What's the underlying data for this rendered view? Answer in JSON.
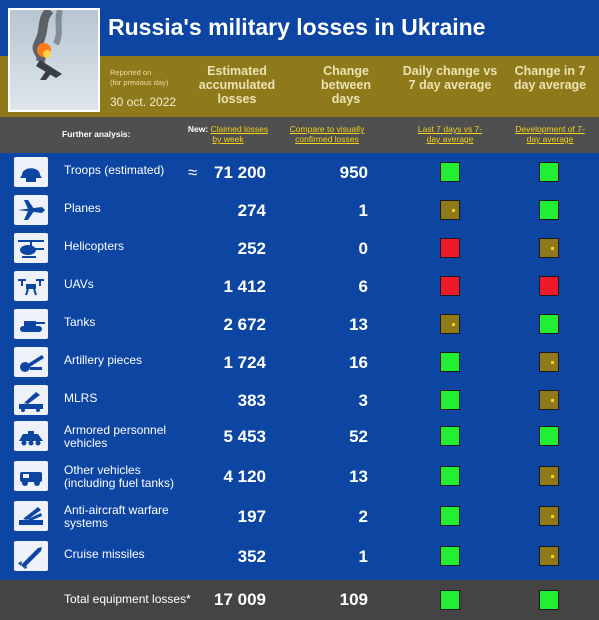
{
  "title": "Russia's military losses in Ukraine",
  "report": {
    "reported_on_line1": "Reported on",
    "reported_on_line2": "(for previous day)",
    "date": "30 oct. 2022"
  },
  "columns": {
    "estimated": "Estimated accumulated losses",
    "change": "Change between days",
    "daily_change": "Daily change vs 7 day average",
    "change_7day": "Change in 7 day average"
  },
  "subheader": {
    "further_analysis": "Further analysis:",
    "new_prefix": "New:",
    "claimed_link": "Claimed losses by week",
    "compare_link": "Compare to visually confirmed losses",
    "last7_link": "Last 7 days vs 7-day average",
    "development_link": "Development of 7-day average"
  },
  "rows": [
    {
      "icon": "helmet-icon",
      "label": "Troops (estimated)",
      "approx": "≈",
      "value": "71 200",
      "change": "950",
      "daily": "up",
      "avg": "up"
    },
    {
      "icon": "plane-icon",
      "label": "Planes",
      "approx": "",
      "value": "274",
      "change": "1",
      "daily": "flat",
      "avg": "up"
    },
    {
      "icon": "helicopter-icon",
      "label": "Helicopters",
      "approx": "",
      "value": "252",
      "change": "0",
      "daily": "down",
      "avg": "flat"
    },
    {
      "icon": "drone-icon",
      "label": "UAVs",
      "approx": "",
      "value": "1 412",
      "change": "6",
      "daily": "down",
      "avg": "down"
    },
    {
      "icon": "tank-icon",
      "label": "Tanks",
      "approx": "",
      "value": "2 672",
      "change": "13",
      "daily": "flat",
      "avg": "up"
    },
    {
      "icon": "artillery-icon",
      "label": "Artillery pieces",
      "approx": "",
      "value": "1 724",
      "change": "16",
      "daily": "up",
      "avg": "flat"
    },
    {
      "icon": "mlrs-icon",
      "label": "MLRS",
      "approx": "",
      "value": "383",
      "change": "3",
      "daily": "up",
      "avg": "flat"
    },
    {
      "icon": "apc-icon",
      "label": "Armored personnel vehicles",
      "approx": "",
      "value": "5 453",
      "change": "52",
      "daily": "up",
      "avg": "up"
    },
    {
      "icon": "vehicle-icon",
      "label": "Other vehicles (including fuel tanks)",
      "approx": "",
      "value": "4 120",
      "change": "13",
      "daily": "up",
      "avg": "flat"
    },
    {
      "icon": "anti-aircraft-icon",
      "label": "Anti-aircraft warfare systems",
      "approx": "",
      "value": "197",
      "change": "2",
      "daily": "up",
      "avg": "flat"
    },
    {
      "icon": "missile-icon",
      "label": "Cruise missiles",
      "approx": "",
      "value": "352",
      "change": "1",
      "daily": "up",
      "avg": "flat"
    }
  ],
  "total": {
    "label": "Total equipment losses*",
    "value": "17 009",
    "change": "109",
    "daily": "up",
    "avg": "up"
  },
  "colors": {
    "background": "#0d45a3",
    "gold": "#8f7a1b",
    "up": "#22ee33",
    "down": "#ee1a2a",
    "link": "#f2d21a"
  }
}
